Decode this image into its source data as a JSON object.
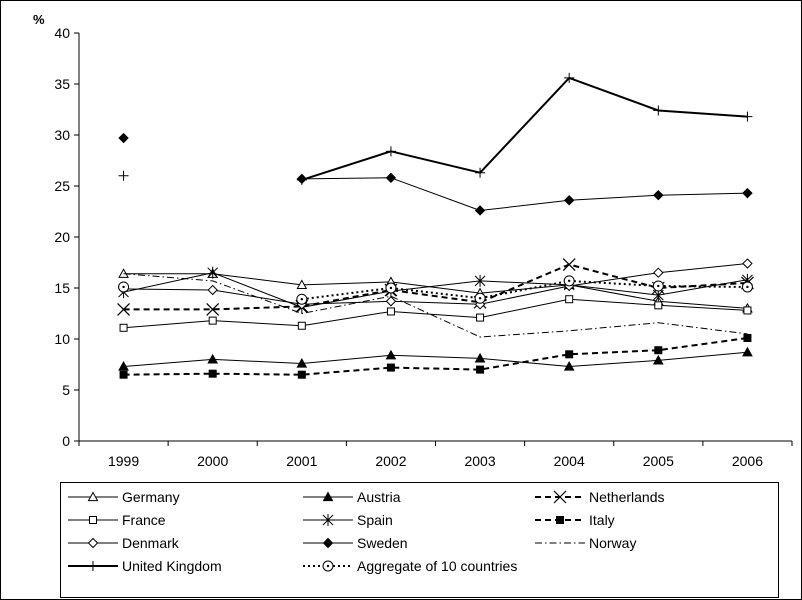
{
  "chart_data": {
    "type": "line",
    "ylabel": "%",
    "ylim": [
      0,
      40
    ],
    "ytick_step": 5,
    "yticks": [
      "0",
      "5",
      "10",
      "15",
      "20",
      "25",
      "30",
      "35",
      "40"
    ],
    "x": [
      "1999",
      "2000",
      "2001",
      "2002",
      "2003",
      "2004",
      "2005",
      "2006"
    ],
    "grid": false,
    "legend_position": "bottom",
    "series": [
      {
        "name": "Germany",
        "marker": "triangle-open",
        "dash": "solid",
        "width": 1,
        "values": [
          16.4,
          16.4,
          15.3,
          15.6,
          14.5,
          15.3,
          13.7,
          13.0
        ]
      },
      {
        "name": "Austria",
        "marker": "triangle-filled",
        "dash": "solid",
        "width": 1,
        "values": [
          7.3,
          8.0,
          7.6,
          8.4,
          8.1,
          7.3,
          7.9,
          8.7
        ]
      },
      {
        "name": "Netherlands",
        "marker": "x",
        "dash": "dashed",
        "width": 2,
        "values": [
          12.9,
          12.9,
          13.2,
          14.8,
          13.6,
          17.3,
          15.0,
          15.5
        ]
      },
      {
        "name": "France",
        "marker": "square-open",
        "dash": "solid",
        "width": 1,
        "values": [
          11.1,
          11.8,
          11.3,
          12.7,
          12.1,
          13.9,
          13.3,
          12.8
        ]
      },
      {
        "name": "Spain",
        "marker": "asterisk",
        "dash": "solid",
        "width": 1,
        "values": [
          14.6,
          16.5,
          13.1,
          14.7,
          15.7,
          15.3,
          14.3,
          15.8
        ]
      },
      {
        "name": "Italy",
        "marker": "square-filled",
        "dash": "dashed",
        "width": 2,
        "values": [
          6.5,
          6.6,
          6.5,
          7.2,
          7.0,
          8.5,
          8.9,
          10.1
        ]
      },
      {
        "name": "Denmark",
        "marker": "diamond-open",
        "dash": "solid",
        "width": 1,
        "values": [
          14.9,
          14.8,
          13.4,
          13.7,
          13.4,
          15.2,
          16.5,
          17.4
        ]
      },
      {
        "name": "Sweden",
        "marker": "diamond-filled",
        "dash": "solid",
        "width": 1,
        "values": [
          29.7,
          null,
          25.7,
          25.8,
          22.6,
          23.6,
          24.1,
          24.3
        ]
      },
      {
        "name": "Norway",
        "marker": "none",
        "dash": "dashdot",
        "width": 1,
        "values": [
          16.4,
          15.7,
          12.5,
          14.2,
          10.2,
          10.8,
          11.6,
          10.5
        ]
      },
      {
        "name": "United Kingdom",
        "marker": "plus",
        "dash": "solid",
        "width": 2,
        "values": [
          26.0,
          null,
          25.6,
          28.4,
          26.3,
          35.6,
          32.4,
          31.8
        ]
      },
      {
        "name": "Aggregate of 10 countries",
        "marker": "circle-dot",
        "dash": "dotted",
        "width": 2,
        "values": [
          15.1,
          null,
          13.9,
          15.0,
          14.0,
          15.7,
          15.2,
          15.1
        ]
      }
    ]
  }
}
